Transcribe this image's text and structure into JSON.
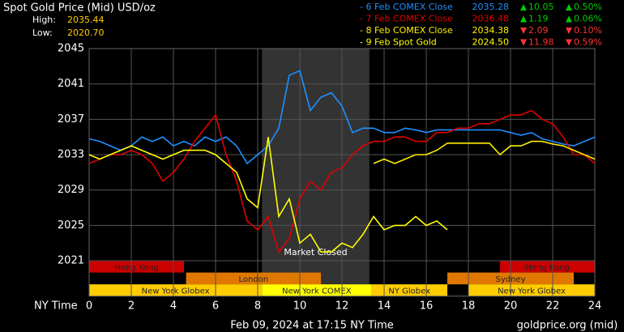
{
  "chart_data": {
    "type": "line",
    "title": "Spot Gold Price (Mid) USD/oz",
    "high_label": "High:",
    "high": "2035.44",
    "low_label": "Low:",
    "low": "2020.70",
    "x_label": "NY Time",
    "footer": "Feb 09, 2024 at 17:15 NY Time",
    "source": "goldprice.org (mid)",
    "xlim": [
      0,
      24
    ],
    "xticks": [
      0,
      2,
      4,
      6,
      8,
      10,
      12,
      14,
      16,
      18,
      20,
      22,
      24
    ],
    "ylim": [
      2017,
      2045
    ],
    "yticks": [
      2021,
      2025,
      2029,
      2033,
      2037,
      2041,
      2045
    ],
    "grid": true,
    "closed": {
      "label": "Market Closed",
      "start": 8.2,
      "end": 13.3
    },
    "session_rows": [
      [
        {
          "label": "Hong Kong",
          "start": 0,
          "end": 4.5,
          "color": "#cc0000"
        },
        {
          "label": "Hong Kong",
          "start": 19.5,
          "end": 24,
          "color": "#cc0000"
        }
      ],
      [
        {
          "label": "London",
          "start": 4.6,
          "end": 11,
          "color": "#e07800"
        },
        {
          "label": "Sydney",
          "start": 17,
          "end": 23,
          "color": "#e07800"
        }
      ],
      [
        {
          "label": "New York Globex",
          "start": 0,
          "end": 8.2,
          "color": "#ffcc00"
        },
        {
          "label": "New York COMEX",
          "start": 8.2,
          "end": 13.4,
          "color": "#ffff00"
        },
        {
          "label": "NY Globex",
          "start": 13.4,
          "end": 17,
          "color": "#ffcc00"
        },
        {
          "label": "New York Globex",
          "start": 18,
          "end": 24,
          "color": "#ffcc00"
        }
      ]
    ],
    "x": [
      0,
      0.5,
      1,
      1.5,
      2,
      2.5,
      3,
      3.5,
      4,
      4.5,
      5,
      5.5,
      6,
      6.5,
      7,
      7.5,
      8,
      8.5,
      9,
      9.5,
      10,
      10.5,
      11,
      11.5,
      12,
      12.5,
      13,
      13.5,
      14,
      14.5,
      15,
      15.5,
      16,
      16.5,
      17,
      17.5,
      18,
      18.5,
      19,
      19.5,
      20,
      20.5,
      21,
      21.5,
      22,
      22.5,
      23,
      23.5,
      24
    ],
    "series": [
      {
        "name": "- 6 Feb COMEX Close",
        "color": "#1e90ff",
        "price": "2035.28",
        "change": "10.05",
        "change_pct": "0.50%",
        "direction": "up",
        "values": [
          2034.8,
          2034.5,
          2034,
          2033.5,
          2034,
          2035,
          2034.5,
          2035,
          2034,
          2034.5,
          2034,
          2035,
          2034.5,
          2035,
          2034,
          2032,
          2033,
          2034,
          2036,
          2042,
          2042.5,
          2038,
          2039.5,
          2040,
          2038.5,
          2035.5,
          2036,
          2036,
          2035.5,
          2035.5,
          2036,
          2035.8,
          2035.5,
          2035.8,
          2035.8,
          2035.8,
          2035.8,
          2035.8,
          2035.8,
          2035.8,
          2035.5,
          2035.2,
          2035.5,
          2034.8,
          2034.5,
          2034.2,
          2034,
          2034.5,
          2035
        ]
      },
      {
        "name": "- 7 Feb COMEX Close",
        "color": "#e00000",
        "price": "2036.48",
        "change": "1.19",
        "change_pct": "0.06%",
        "direction": "up",
        "values": [
          2032,
          2032.5,
          2033,
          2033,
          2033.5,
          2033,
          2032,
          2030,
          2031,
          2032.5,
          2034.5,
          2036,
          2037.5,
          2033,
          2030,
          2025.5,
          2024.5,
          2026,
          2022,
          2023.5,
          2028,
          2030,
          2029,
          2031,
          2031.5,
          2033,
          2034,
          2034.5,
          2034.5,
          2035,
          2035,
          2034.5,
          2034.5,
          2035.5,
          2035.5,
          2036,
          2036,
          2036.5,
          2036.5,
          2037,
          2037.5,
          2037.5,
          2038,
          2037,
          2036.5,
          2035,
          2033,
          2033,
          2032
        ]
      },
      {
        "name": "- 8 Feb COMEX Close",
        "color": "#ffee00",
        "price": "2034.38",
        "change": "2.09",
        "change_pct": "0.10%",
        "direction": "down",
        "values": [
          null,
          null,
          null,
          null,
          null,
          null,
          null,
          null,
          null,
          null,
          null,
          null,
          null,
          null,
          null,
          null,
          null,
          null,
          null,
          null,
          null,
          null,
          null,
          null,
          null,
          null,
          null,
          2032,
          2032.5,
          2032,
          2032.5,
          2033,
          2033,
          2033.5,
          2034.3,
          2034.3,
          2034.3,
          2034.3,
          2034.3,
          2033,
          2034,
          2034,
          2034.5,
          2034.5,
          2034.2,
          2034,
          2033.5,
          2033,
          2032.5
        ]
      },
      {
        "name": "- 9 Feb Spot Gold",
        "color": "#ffff00",
        "price": "2024.50",
        "change": "11.98",
        "change_pct": "0.59%",
        "direction": "down",
        "values": [
          2033,
          2032.5,
          2033,
          2033.5,
          2034,
          2033.5,
          2033,
          2032.5,
          2033,
          2033.5,
          2033.5,
          2033.5,
          2033,
          2032,
          2031,
          2028,
          2027,
          2035,
          2026,
          2028,
          2023,
          2024,
          2022,
          2022,
          2023,
          2022.5,
          2024,
          2026,
          2024.5,
          2025,
          2025,
          2026,
          2025,
          2025.5,
          2024.5,
          null,
          null,
          null,
          null,
          null,
          null,
          null,
          null,
          null,
          null,
          null,
          null,
          null,
          null
        ]
      }
    ]
  }
}
